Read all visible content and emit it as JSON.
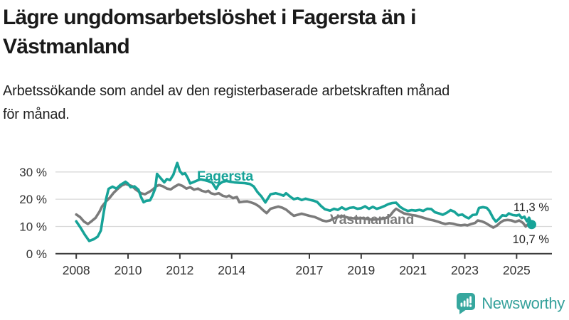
{
  "header": {
    "title_line1": "Lägre ungdomsarbetslöshet i Fagersta än i",
    "title_line2": "Västmanland",
    "subtitle_line1": "Arbetssökande som andel av den registerbaserade arbetskraften månad",
    "subtitle_line2": "för månad."
  },
  "footer": {
    "brand": "Newsworthy"
  },
  "colors": {
    "fagersta": "#17a398",
    "vastmanland": "#7b7b7b",
    "grid": "#d9d9d9",
    "axis": "#3c3c3c",
    "tick_text": "#333333",
    "value_text": "#1f1f1f",
    "logo": "#36a79e"
  },
  "chart_data": {
    "type": "line",
    "title": "Lägre ungdomsarbetslöshet i Fagersta än i Västmanland",
    "subtitle": "Arbetssökande som andel av den registerbaserade arbetskraften månad för månad.",
    "xlabel": "",
    "ylabel": "",
    "unit": "%",
    "grid": "horizontal",
    "legend": "inline-labels",
    "x_axis": {
      "ticks": [
        2008,
        2010,
        2012,
        2014,
        2017,
        2019,
        2021,
        2023,
        2025
      ],
      "range": [
        2007.5,
        2026.3
      ]
    },
    "y_axis": {
      "ticks": [
        {
          "value": 0,
          "label": "0 %"
        },
        {
          "value": 10,
          "label": "10 %"
        },
        {
          "value": 20,
          "label": "20 %"
        },
        {
          "value": 30,
          "label": "30 %"
        }
      ],
      "range": [
        0,
        35
      ]
    },
    "series": [
      {
        "name": "Fagersta",
        "slug": "fagersta",
        "color": "#17a398",
        "last_value": 10.7,
        "end_label": "10,7 %",
        "points": [
          [
            2008.0,
            11.9
          ],
          [
            2008.17,
            9.5
          ],
          [
            2008.33,
            7.0
          ],
          [
            2008.5,
            4.7
          ],
          [
            2008.67,
            5.3
          ],
          [
            2008.83,
            6.3
          ],
          [
            2008.95,
            8.5
          ],
          [
            2009.05,
            14.5
          ],
          [
            2009.15,
            20.0
          ],
          [
            2009.25,
            23.8
          ],
          [
            2009.4,
            24.6
          ],
          [
            2009.55,
            23.9
          ],
          [
            2009.7,
            25.2
          ],
          [
            2009.9,
            26.4
          ],
          [
            2010.0,
            25.7
          ],
          [
            2010.1,
            24.4
          ],
          [
            2010.25,
            24.7
          ],
          [
            2010.4,
            23.5
          ],
          [
            2010.5,
            20.8
          ],
          [
            2010.6,
            18.9
          ],
          [
            2010.7,
            19.4
          ],
          [
            2010.85,
            19.6
          ],
          [
            2010.95,
            21.5
          ],
          [
            2011.05,
            24.0
          ],
          [
            2011.12,
            29.3
          ],
          [
            2011.25,
            27.8
          ],
          [
            2011.4,
            26.2
          ],
          [
            2011.5,
            27.4
          ],
          [
            2011.62,
            27.0
          ],
          [
            2011.75,
            29.0
          ],
          [
            2011.9,
            33.3
          ],
          [
            2012.0,
            30.3
          ],
          [
            2012.1,
            29.2
          ],
          [
            2012.2,
            29.5
          ],
          [
            2012.3,
            27.9
          ],
          [
            2012.4,
            25.8
          ],
          [
            2012.5,
            26.2
          ],
          [
            2012.65,
            26.8
          ],
          [
            2012.8,
            27.3
          ],
          [
            2012.95,
            27.0
          ],
          [
            2013.1,
            26.6
          ],
          [
            2013.25,
            26.1
          ],
          [
            2013.4,
            23.8
          ],
          [
            2013.5,
            25.4
          ],
          [
            2013.65,
            26.4
          ],
          [
            2013.8,
            26.7
          ],
          [
            2013.95,
            26.4
          ],
          [
            2014.1,
            26.2
          ],
          [
            2014.3,
            26.0
          ],
          [
            2014.5,
            25.9
          ],
          [
            2014.7,
            25.6
          ],
          [
            2014.85,
            24.7
          ],
          [
            2015.0,
            22.6
          ],
          [
            2015.15,
            21.0
          ],
          [
            2015.3,
            18.8
          ],
          [
            2015.5,
            21.8
          ],
          [
            2015.7,
            22.2
          ],
          [
            2015.85,
            21.8
          ],
          [
            2016.0,
            21.3
          ],
          [
            2016.1,
            22.2
          ],
          [
            2016.25,
            21.0
          ],
          [
            2016.4,
            20.0
          ],
          [
            2016.55,
            20.4
          ],
          [
            2016.7,
            19.7
          ],
          [
            2016.85,
            20.2
          ],
          [
            2017.0,
            19.8
          ],
          [
            2017.15,
            19.5
          ],
          [
            2017.3,
            19.0
          ],
          [
            2017.45,
            17.5
          ],
          [
            2017.6,
            16.3
          ],
          [
            2017.8,
            15.8
          ],
          [
            2017.95,
            16.5
          ],
          [
            2018.1,
            16.1
          ],
          [
            2018.25,
            17.0
          ],
          [
            2018.4,
            16.2
          ],
          [
            2018.55,
            16.8
          ],
          [
            2018.7,
            17.0
          ],
          [
            2018.85,
            16.5
          ],
          [
            2019.0,
            16.7
          ],
          [
            2019.15,
            17.4
          ],
          [
            2019.3,
            16.5
          ],
          [
            2019.45,
            17.2
          ],
          [
            2019.6,
            16.5
          ],
          [
            2019.75,
            16.9
          ],
          [
            2019.9,
            17.5
          ],
          [
            2020.05,
            18.2
          ],
          [
            2020.2,
            18.6
          ],
          [
            2020.35,
            18.7
          ],
          [
            2020.5,
            17.2
          ],
          [
            2020.65,
            16.3
          ],
          [
            2020.8,
            15.7
          ],
          [
            2020.95,
            16.0
          ],
          [
            2021.1,
            15.8
          ],
          [
            2021.25,
            16.1
          ],
          [
            2021.4,
            15.7
          ],
          [
            2021.55,
            16.5
          ],
          [
            2021.7,
            16.4
          ],
          [
            2021.85,
            15.2
          ],
          [
            2022.0,
            14.8
          ],
          [
            2022.15,
            14.3
          ],
          [
            2022.3,
            15.0
          ],
          [
            2022.45,
            16.0
          ],
          [
            2022.6,
            15.4
          ],
          [
            2022.75,
            14.1
          ],
          [
            2022.9,
            14.4
          ],
          [
            2023.05,
            13.4
          ],
          [
            2023.15,
            13.0
          ],
          [
            2023.3,
            14.2
          ],
          [
            2023.45,
            14.4
          ],
          [
            2023.55,
            16.8
          ],
          [
            2023.7,
            17.1
          ],
          [
            2023.85,
            16.8
          ],
          [
            2023.95,
            15.7
          ],
          [
            2024.1,
            13.0
          ],
          [
            2024.2,
            11.8
          ],
          [
            2024.3,
            12.6
          ],
          [
            2024.45,
            14.1
          ],
          [
            2024.6,
            13.9
          ],
          [
            2024.7,
            14.8
          ],
          [
            2024.85,
            14.2
          ],
          [
            2025.0,
            14.0
          ],
          [
            2025.1,
            14.3
          ],
          [
            2025.2,
            13.1
          ],
          [
            2025.3,
            13.6
          ],
          [
            2025.4,
            11.9
          ],
          [
            2025.48,
            13.2
          ],
          [
            2025.58,
            10.7
          ]
        ]
      },
      {
        "name": "Västmanland",
        "slug": "vastmanland",
        "color": "#7b7b7b",
        "last_value": 11.3,
        "end_label": "11,3 %",
        "points": [
          [
            2008.0,
            14.4
          ],
          [
            2008.15,
            13.4
          ],
          [
            2008.3,
            11.8
          ],
          [
            2008.45,
            10.9
          ],
          [
            2008.6,
            12.0
          ],
          [
            2008.75,
            13.2
          ],
          [
            2008.9,
            15.5
          ],
          [
            2009.0,
            17.4
          ],
          [
            2009.15,
            19.2
          ],
          [
            2009.3,
            20.6
          ],
          [
            2009.45,
            22.4
          ],
          [
            2009.6,
            23.8
          ],
          [
            2009.75,
            25.0
          ],
          [
            2009.9,
            25.6
          ],
          [
            2010.0,
            25.3
          ],
          [
            2010.15,
            24.8
          ],
          [
            2010.3,
            23.5
          ],
          [
            2010.5,
            22.2
          ],
          [
            2010.65,
            21.8
          ],
          [
            2010.8,
            22.6
          ],
          [
            2010.95,
            23.5
          ],
          [
            2011.1,
            24.8
          ],
          [
            2011.2,
            25.2
          ],
          [
            2011.35,
            24.7
          ],
          [
            2011.5,
            23.9
          ],
          [
            2011.65,
            23.6
          ],
          [
            2011.8,
            24.6
          ],
          [
            2011.95,
            25.4
          ],
          [
            2012.1,
            24.9
          ],
          [
            2012.25,
            23.9
          ],
          [
            2012.4,
            24.4
          ],
          [
            2012.55,
            23.5
          ],
          [
            2012.7,
            23.9
          ],
          [
            2012.85,
            23.1
          ],
          [
            2013.0,
            22.7
          ],
          [
            2013.1,
            23.1
          ],
          [
            2013.2,
            22.2
          ],
          [
            2013.35,
            21.8
          ],
          [
            2013.5,
            22.2
          ],
          [
            2013.65,
            21.3
          ],
          [
            2013.8,
            20.9
          ],
          [
            2013.9,
            21.3
          ],
          [
            2014.05,
            20.4
          ],
          [
            2014.2,
            20.8
          ],
          [
            2014.3,
            18.9
          ],
          [
            2014.45,
            19.1
          ],
          [
            2014.6,
            19.2
          ],
          [
            2014.75,
            18.8
          ],
          [
            2014.9,
            18.3
          ],
          [
            2015.05,
            17.4
          ],
          [
            2015.2,
            16.1
          ],
          [
            2015.35,
            14.9
          ],
          [
            2015.5,
            16.5
          ],
          [
            2015.65,
            16.9
          ],
          [
            2015.8,
            17.3
          ],
          [
            2015.95,
            16.9
          ],
          [
            2016.1,
            16.2
          ],
          [
            2016.25,
            15.0
          ],
          [
            2016.4,
            13.9
          ],
          [
            2016.55,
            14.3
          ],
          [
            2016.7,
            14.7
          ],
          [
            2016.85,
            14.3
          ],
          [
            2017.0,
            13.9
          ],
          [
            2017.2,
            13.5
          ],
          [
            2017.35,
            12.9
          ],
          [
            2017.5,
            12.2
          ],
          [
            2017.65,
            11.9
          ],
          [
            2017.8,
            12.2
          ],
          [
            2017.95,
            13.0
          ],
          [
            2018.1,
            13.5
          ],
          [
            2018.25,
            13.9
          ],
          [
            2018.4,
            13.5
          ],
          [
            2018.55,
            13.1
          ],
          [
            2018.7,
            13.0
          ],
          [
            2018.85,
            12.9
          ],
          [
            2019.0,
            13.1
          ],
          [
            2019.2,
            12.8
          ],
          [
            2019.4,
            12.5
          ],
          [
            2019.6,
            12.6
          ],
          [
            2019.8,
            12.8
          ],
          [
            2019.95,
            13.1
          ],
          [
            2020.1,
            13.8
          ],
          [
            2020.25,
            15.6
          ],
          [
            2020.35,
            16.5
          ],
          [
            2020.5,
            15.6
          ],
          [
            2020.65,
            14.8
          ],
          [
            2020.8,
            14.5
          ],
          [
            2020.95,
            14.2
          ],
          [
            2021.1,
            14.0
          ],
          [
            2021.3,
            13.5
          ],
          [
            2021.5,
            12.9
          ],
          [
            2021.65,
            12.5
          ],
          [
            2021.8,
            12.2
          ],
          [
            2021.95,
            11.8
          ],
          [
            2022.1,
            11.3
          ],
          [
            2022.25,
            10.9
          ],
          [
            2022.4,
            11.2
          ],
          [
            2022.55,
            11.0
          ],
          [
            2022.7,
            10.6
          ],
          [
            2022.85,
            10.4
          ],
          [
            2023.0,
            10.6
          ],
          [
            2023.1,
            10.4
          ],
          [
            2023.25,
            10.9
          ],
          [
            2023.4,
            11.3
          ],
          [
            2023.5,
            12.2
          ],
          [
            2023.65,
            11.9
          ],
          [
            2023.8,
            11.3
          ],
          [
            2023.95,
            10.4
          ],
          [
            2024.1,
            9.6
          ],
          [
            2024.25,
            10.4
          ],
          [
            2024.35,
            11.3
          ],
          [
            2024.5,
            12.2
          ],
          [
            2024.65,
            12.4
          ],
          [
            2024.8,
            12.2
          ],
          [
            2024.95,
            11.7
          ],
          [
            2025.1,
            12.2
          ],
          [
            2025.25,
            11.3
          ],
          [
            2025.35,
            10.0
          ],
          [
            2025.45,
            10.9
          ],
          [
            2025.58,
            11.3
          ]
        ]
      }
    ]
  }
}
